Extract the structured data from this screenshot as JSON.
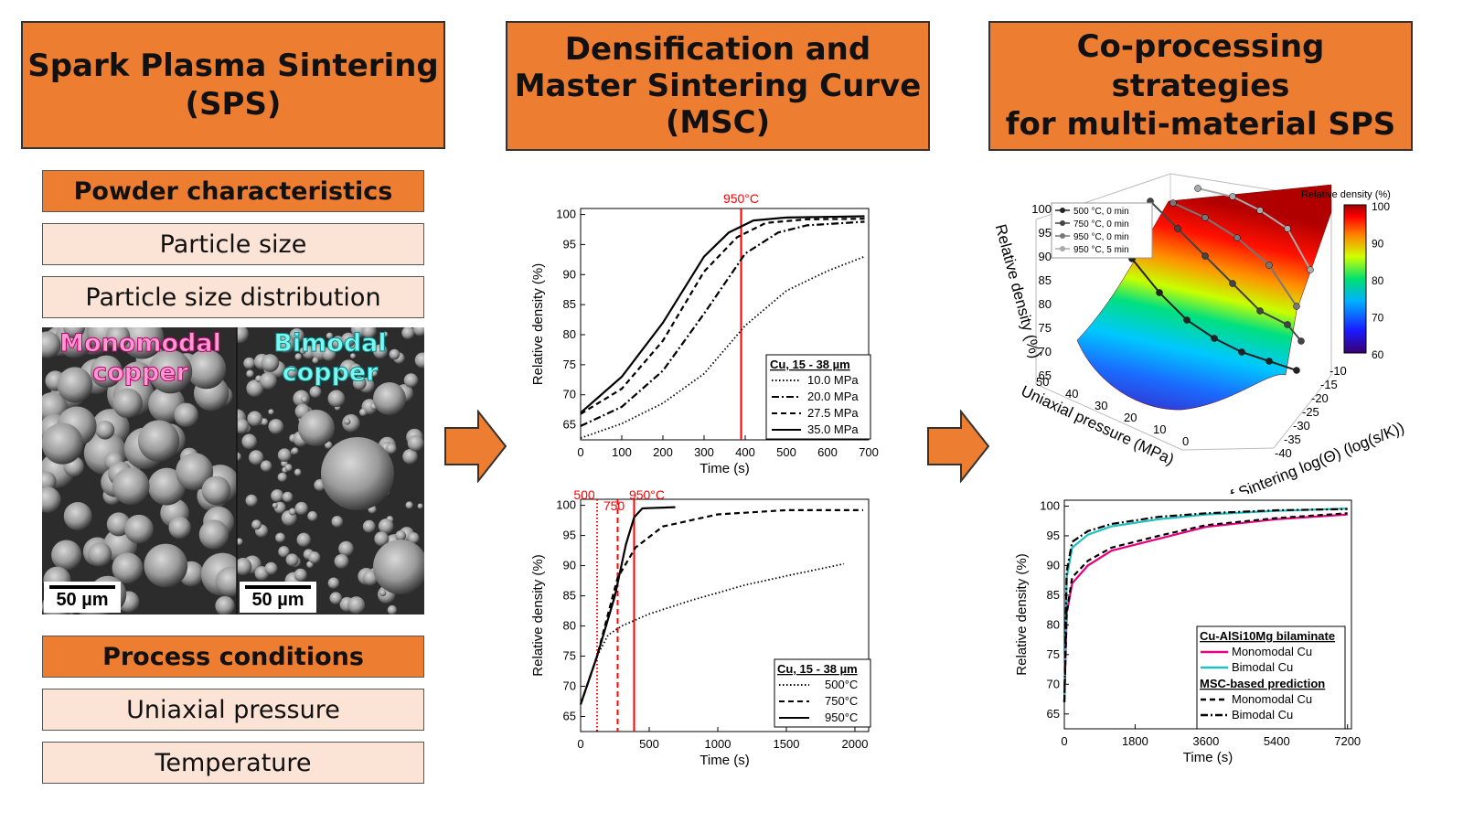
{
  "col1": {
    "title_line1": "Spark Plasma Sintering",
    "title_line2": "(SPS)",
    "powder_header": "Powder characteristics",
    "particle_size": "Particle size",
    "psd": "Particle size distribution",
    "mono_line1": "Monomodal",
    "mono_line2": "copper",
    "bi_line1": "Bimodal",
    "bi_line2": "copper",
    "scale1": "50 µm",
    "scale2": "50 µm",
    "process_header": "Process conditions",
    "pressure": "Uniaxial pressure",
    "temperature": "Temperature"
  },
  "col2": {
    "title_line1": "Densification and",
    "title_line2": "Master Sintering Curve",
    "title_line3": "(MSC)"
  },
  "col3": {
    "title_line1": "Co-processing strategies",
    "title_line2": "for multi-material SPS"
  },
  "colors": {
    "orange": "#ED7D31",
    "peach": "#FBE3D6",
    "red": "#FF0000",
    "pink": "#E6007E",
    "cyan": "#20C0C0"
  },
  "chart_data": [
    {
      "type": "line",
      "xlabel": "Time (s)",
      "ylabel": "Relative density (%)",
      "xlim": [
        0,
        700
      ],
      "ylim": [
        62.5,
        101
      ],
      "xticks": [
        0,
        100,
        200,
        300,
        400,
        500,
        600,
        700
      ],
      "yticks": [
        65,
        70,
        75,
        80,
        85,
        90,
        95,
        100
      ],
      "vline": {
        "x": 390,
        "label": "950°C"
      },
      "legend_title": "Cu, 15 - 38 µm",
      "series": [
        {
          "name": "10.0 MPa",
          "dash": "dot",
          "points": [
            [
              0,
              62.8
            ],
            [
              100,
              65.2
            ],
            [
              200,
              68.6
            ],
            [
              300,
              73.5
            ],
            [
              400,
              81.5
            ],
            [
              500,
              87.3
            ],
            [
              600,
              90.6
            ],
            [
              690,
              93.0
            ]
          ]
        },
        {
          "name": "20.0 MPa",
          "dash": "dashdot",
          "points": [
            [
              0,
              64.8
            ],
            [
              100,
              68.0
            ],
            [
              200,
              74.0
            ],
            [
              300,
              83.5
            ],
            [
              400,
              93.5
            ],
            [
              480,
              97.0
            ],
            [
              550,
              98.2
            ],
            [
              690,
              98.8
            ]
          ]
        },
        {
          "name": "27.5 MPa",
          "dash": "dash",
          "points": [
            [
              0,
              66.8
            ],
            [
              100,
              71.0
            ],
            [
              200,
              79.0
            ],
            [
              300,
              90.5
            ],
            [
              380,
              96.2
            ],
            [
              450,
              98.6
            ],
            [
              550,
              99.2
            ],
            [
              690,
              99.3
            ]
          ]
        },
        {
          "name": "35.0 MPa",
          "dash": "solid",
          "points": [
            [
              0,
              67.0
            ],
            [
              100,
              73.0
            ],
            [
              200,
              82.0
            ],
            [
              300,
              93.0
            ],
            [
              360,
              97.0
            ],
            [
              420,
              99.0
            ],
            [
              500,
              99.5
            ],
            [
              690,
              99.7
            ]
          ]
        }
      ]
    },
    {
      "type": "line",
      "xlabel": "Time (s)",
      "ylabel": "Relative density (%)",
      "xlim": [
        0,
        2100
      ],
      "ylim": [
        62.5,
        101
      ],
      "xticks": [
        0,
        500,
        1000,
        1500,
        2000
      ],
      "yticks": [
        65,
        70,
        75,
        80,
        85,
        90,
        95,
        100
      ],
      "vlines": [
        {
          "x": 120,
          "label": "500",
          "dash": "dot"
        },
        {
          "x": 270,
          "label": "750",
          "dash": "dash"
        },
        {
          "x": 390,
          "label": "950°C",
          "dash": "solid"
        }
      ],
      "legend_title": "Cu, 15 - 38 µm",
      "series": [
        {
          "name": "500°C",
          "dash": "dot",
          "points": [
            [
              0,
              67.0
            ],
            [
              120,
              75.0
            ],
            [
              200,
              78.5
            ],
            [
              300,
              80.0
            ],
            [
              500,
              82.0
            ],
            [
              800,
              84.2
            ],
            [
              1200,
              86.8
            ],
            [
              1500,
              88.3
            ],
            [
              1920,
              90.3
            ]
          ]
        },
        {
          "name": "750°C",
          "dash": "dash",
          "points": [
            [
              0,
              67.0
            ],
            [
              120,
              75.0
            ],
            [
              200,
              82.0
            ],
            [
              270,
              88.0
            ],
            [
              400,
              93.0
            ],
            [
              600,
              96.5
            ],
            [
              1000,
              98.5
            ],
            [
              1500,
              99.2
            ],
            [
              2060,
              99.2
            ]
          ]
        },
        {
          "name": "950°C",
          "dash": "solid",
          "points": [
            [
              0,
              67.0
            ],
            [
              120,
              75.0
            ],
            [
              250,
              85.0
            ],
            [
              330,
              93.5
            ],
            [
              390,
              98.0
            ],
            [
              450,
              99.5
            ],
            [
              690,
              99.7
            ]
          ]
        }
      ]
    },
    {
      "type": "line",
      "xlabel": "Time (s)",
      "ylabel": "Relative density (%)",
      "xlim": [
        0,
        7300
      ],
      "ylim": [
        62.5,
        101
      ],
      "xticks": [
        0,
        1800,
        3600,
        5400,
        7200
      ],
      "yticks": [
        65,
        70,
        75,
        80,
        85,
        90,
        95,
        100
      ],
      "legend_title1": "Cu-AlSi10Mg bilaminate",
      "legend_title2": "MSC-based prediction",
      "series": [
        {
          "name": "Monomodal Cu",
          "color": "#E6007E",
          "dash": "solid",
          "points": [
            [
              0,
              67
            ],
            [
              60,
              82
            ],
            [
              200,
              87
            ],
            [
              600,
              90
            ],
            [
              1200,
              92.5
            ],
            [
              2400,
              94.5
            ],
            [
              3600,
              96.5
            ],
            [
              5400,
              97.8
            ],
            [
              7200,
              98.6
            ]
          ]
        },
        {
          "name": "Bimodal Cu",
          "color": "#20C0C0",
          "dash": "solid",
          "points": [
            [
              0,
              67
            ],
            [
              60,
              88
            ],
            [
              200,
              93
            ],
            [
              600,
              95.2
            ],
            [
              1200,
              96.6
            ],
            [
              2400,
              97.8
            ],
            [
              3600,
              98.6
            ],
            [
              5400,
              99.2
            ],
            [
              7200,
              99.6
            ]
          ]
        },
        {
          "name": "Monomodal Cu",
          "color": "#000000",
          "dash": "dash",
          "points": [
            [
              0,
              67
            ],
            [
              60,
              82
            ],
            [
              200,
              88
            ],
            [
              600,
              90.8
            ],
            [
              1200,
              93
            ],
            [
              2400,
              95
            ],
            [
              3600,
              96.8
            ],
            [
              5400,
              98
            ],
            [
              7200,
              98.8
            ]
          ]
        },
        {
          "name": "Bimodal Cu",
          "color": "#000000",
          "dash": "dashdot",
          "points": [
            [
              0,
              67
            ],
            [
              60,
              89
            ],
            [
              200,
              94
            ],
            [
              600,
              95.8
            ],
            [
              1200,
              97
            ],
            [
              2400,
              98.2
            ],
            [
              3600,
              98.8
            ],
            [
              5400,
              99.3
            ],
            [
              7200,
              99.5
            ]
          ]
        }
      ]
    },
    {
      "type": "surface3d",
      "zlabel": "Relative density (%)",
      "xlabel": "Uniaxial pressure (MPa)",
      "ylabel": "Work of Sintering log(Θ) (log(s/K))",
      "xticks": [
        0,
        10,
        20,
        30,
        40,
        50
      ],
      "yticks": [
        -40,
        -35,
        -30,
        -25,
        -20,
        -15,
        -10
      ],
      "zticks": [
        65,
        70,
        75,
        80,
        85,
        90,
        95,
        100
      ],
      "colorbar_title": "Relative density (%)",
      "colorbar_ticks": [
        60,
        70,
        80,
        90,
        100
      ],
      "legend": [
        "500 °C, 0 min",
        "750 °C, 0 min",
        "950 °C, 0 min",
        "950 °C, 5 min"
      ]
    }
  ]
}
